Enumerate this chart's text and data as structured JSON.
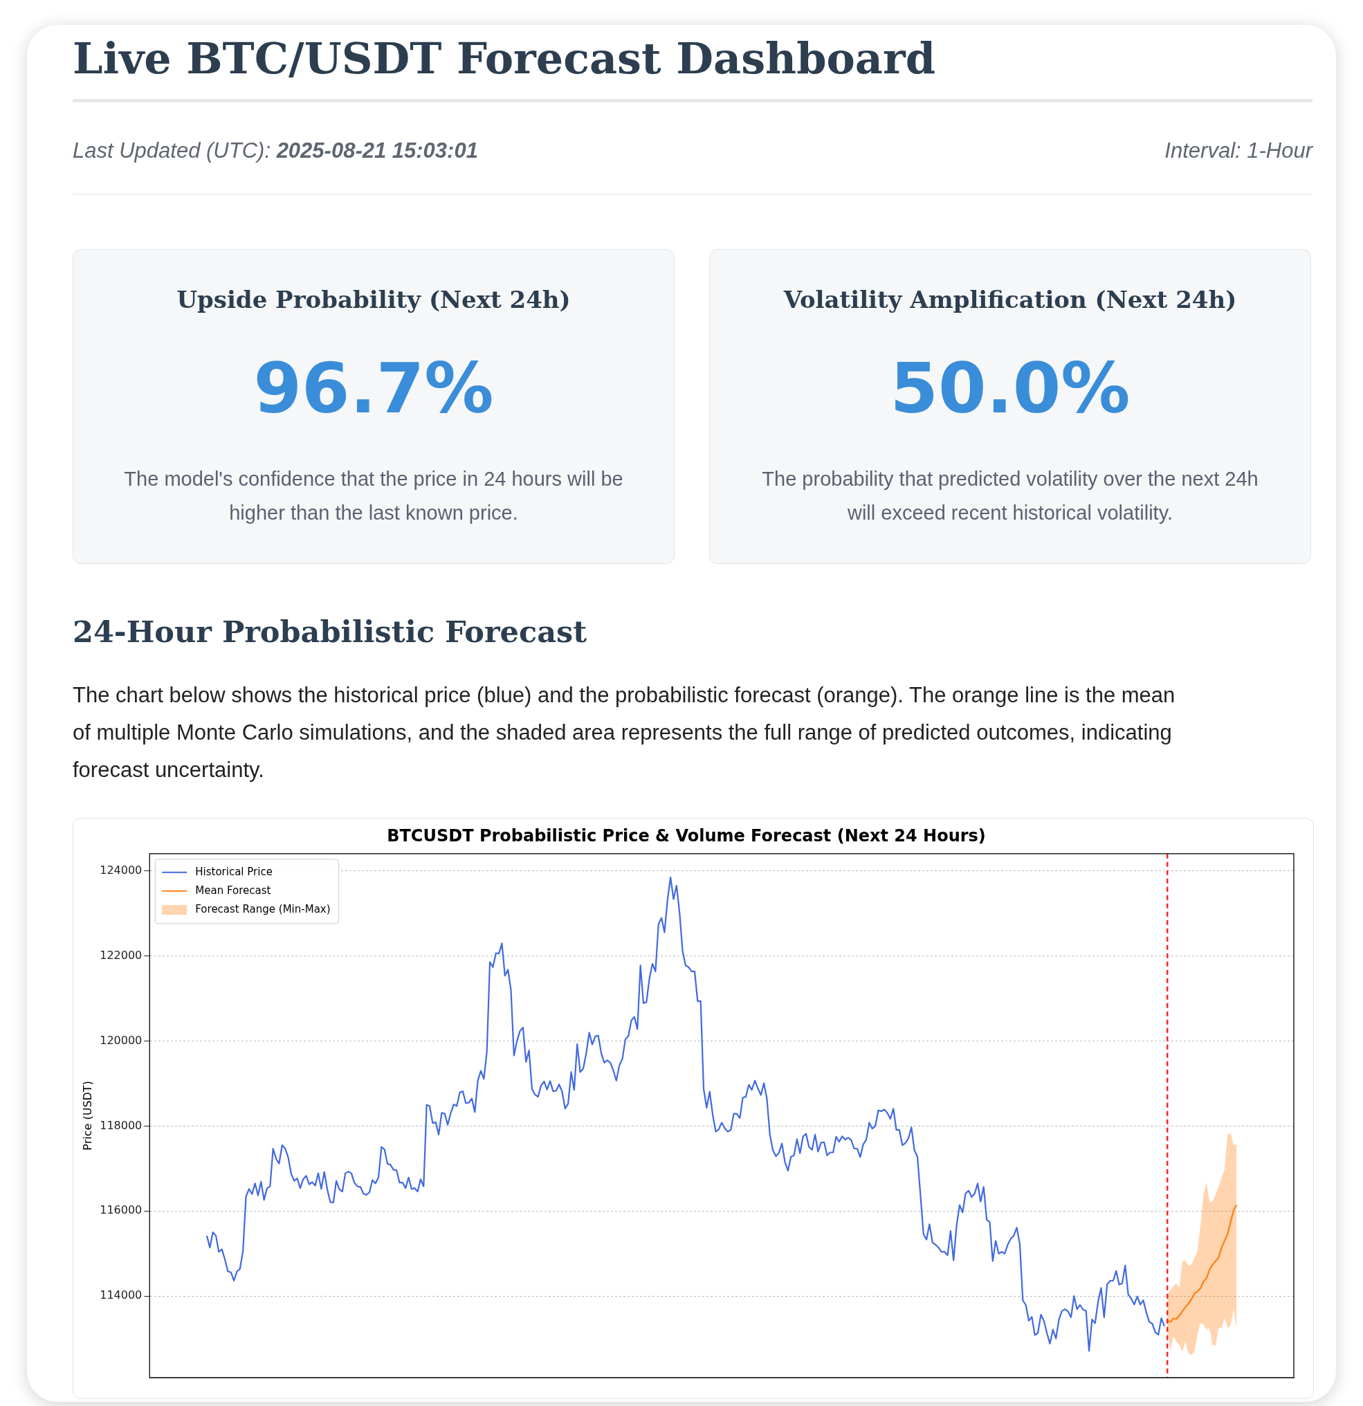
{
  "chart_data": [
    {
      "type": "other",
      "title": "Live BTC/USDT Forecast Dashboard",
      "annotations": [
        "Last Updated (UTC):",
        "2025-08-21 15:03:01",
        "Interval: 1-Hour"
      ]
    },
    {
      "type": "other",
      "title": "Upside Probability (Next 24h)",
      "annotations": [
        "96.7%",
        "The model's confidence that the price in 24 hours will be higher than the last known price."
      ]
    },
    {
      "type": "other",
      "title": "Volatility Amplification (Next 24h)",
      "annotations": [
        "50.0%",
        "The probability that predicted volatility over the next 24h will exceed recent historical volatility."
      ]
    },
    {
      "type": "other",
      "title": "24-Hour Probabilistic Forecast",
      "annotations": [
        "The chart below shows the historical price (blue) and the probabilistic forecast (orange). The orange line is the mean of multiple Monte Carlo simulations, and the shaded area represents the full range of predicted outcomes, indicating forecast uncertainty."
      ]
    },
    {
      "type": "line",
      "title": "BTCUSDT Probabilistic Price & Volume Forecast (Next 24 Hours)",
      "ylabel": "Price (USDT)",
      "ylim": [
        112080,
        124410
      ],
      "yticks": [
        114000,
        116000,
        118000,
        120000,
        122000,
        124000
      ],
      "tick_labels": "y",
      "grid": "y",
      "legend": "top left",
      "annotations": [
        "Forecast Range (Min-Max)"
      ],
      "ref_lines": [
        {
          "axis": "x",
          "color": "#ff2020",
          "line_style": "dashed"
        }
      ],
      "categories": [
        null,
        null,
        null,
        null,
        null,
        null,
        null,
        null,
        null,
        null,
        null,
        null,
        null,
        null,
        null,
        null,
        null,
        null,
        null,
        null,
        null,
        null,
        null,
        null,
        null,
        null,
        null,
        null,
        null,
        null,
        null,
        null,
        null,
        null,
        null,
        null,
        null,
        null,
        null,
        null,
        null,
        null,
        null,
        null,
        null,
        null,
        null,
        null,
        null,
        null,
        null,
        null,
        null,
        null,
        null,
        null,
        null,
        null,
        null,
        null,
        null,
        null,
        null,
        null,
        null,
        null,
        null,
        null,
        null,
        null,
        null,
        null,
        null,
        null,
        null,
        null,
        null,
        null,
        null,
        null,
        null,
        null,
        null,
        null,
        null,
        null,
        null,
        null,
        null,
        null,
        null,
        null,
        null,
        null,
        null,
        null,
        null,
        null,
        null,
        null,
        null,
        null,
        null,
        null,
        null,
        null,
        null,
        null,
        null,
        null,
        null,
        null,
        null,
        null,
        null,
        null,
        null,
        null,
        null,
        null,
        null,
        null,
        null,
        null,
        null,
        null,
        null,
        null,
        null,
        null,
        null,
        null,
        null,
        null,
        null,
        null,
        null,
        null,
        null,
        null,
        null,
        null,
        null,
        null,
        null,
        null,
        null,
        null,
        null,
        null,
        null,
        null,
        null,
        null,
        null,
        null,
        null,
        null,
        null,
        null,
        null,
        null,
        null,
        null,
        null,
        null,
        null,
        null,
        null,
        null,
        null,
        null,
        null,
        null,
        null,
        null,
        null,
        null,
        null,
        null,
        null,
        null,
        null,
        null,
        null,
        null,
        null,
        null,
        null,
        null,
        null,
        null,
        null,
        null,
        null,
        null,
        null,
        null,
        null,
        null,
        null,
        null,
        null,
        null,
        null,
        null,
        null,
        null,
        null,
        null,
        null,
        null,
        null,
        null,
        null,
        null,
        null,
        null,
        null,
        null,
        null,
        null,
        null,
        null,
        null,
        null,
        null,
        null,
        null,
        null,
        null,
        null,
        null,
        null,
        null,
        null,
        null,
        null,
        null,
        null,
        null,
        null,
        null,
        null,
        null,
        null,
        null,
        null,
        null,
        null,
        null,
        null,
        null,
        null,
        null,
        null,
        null,
        null,
        null,
        null,
        null,
        null,
        null,
        null,
        null,
        null,
        null,
        null,
        null,
        null,
        null,
        null,
        null,
        null,
        null,
        null,
        null,
        null,
        null,
        null,
        null,
        null,
        null,
        null,
        null,
        null,
        null,
        null,
        null,
        null,
        null,
        null,
        null,
        null,
        null,
        null,
        null,
        null,
        null,
        null,
        null,
        null,
        null,
        null,
        null,
        null,
        null,
        null,
        null,
        null,
        null,
        null,
        null,
        null,
        null,
        null,
        null,
        null,
        null,
        null,
        null,
        null,
        null,
        null,
        null,
        null,
        null,
        null,
        null,
        null,
        null,
        null,
        null,
        null,
        null,
        null,
        null,
        null,
        null,
        null,
        null,
        null,
        null
      ],
      "series": [
        {
          "name": "Historical Price",
          "color": "#4169e1",
          "values": [
            115420,
            115140,
            115500,
            115420,
            115040,
            115100,
            114860,
            114580,
            114560,
            114360,
            114580,
            114640,
            115060,
            116340,
            116520,
            116400,
            116650,
            116370,
            116690,
            116260,
            116540,
            116580,
            117470,
            117230,
            117120,
            117550,
            117470,
            117270,
            116880,
            116710,
            116770,
            116540,
            116750,
            116830,
            116630,
            116680,
            116600,
            116890,
            116520,
            116920,
            116510,
            116210,
            116200,
            116710,
            116510,
            116460,
            116890,
            116930,
            116890,
            116670,
            116580,
            116570,
            116410,
            116380,
            116440,
            116730,
            116650,
            116790,
            117510,
            117450,
            117110,
            117090,
            116970,
            116960,
            116670,
            116670,
            116540,
            116790,
            116520,
            116540,
            116460,
            116750,
            116580,
            118500,
            118470,
            118070,
            118090,
            117800,
            118310,
            118290,
            118030,
            118310,
            118510,
            118470,
            118790,
            118820,
            118540,
            118550,
            118650,
            118330,
            119070,
            119300,
            119110,
            119750,
            121860,
            121740,
            122070,
            122060,
            122300,
            121540,
            121680,
            121200,
            119660,
            120000,
            120240,
            120320,
            119510,
            119780,
            118870,
            118740,
            118690,
            118950,
            119050,
            118860,
            119060,
            118820,
            118830,
            118980,
            118810,
            118410,
            118530,
            119270,
            118850,
            119930,
            119270,
            119350,
            119710,
            120200,
            119920,
            120110,
            120130,
            119710,
            119490,
            119550,
            119490,
            119310,
            119070,
            119430,
            119580,
            120040,
            120120,
            120490,
            120570,
            120280,
            121780,
            120890,
            120920,
            121480,
            121820,
            121640,
            122750,
            122900,
            122560,
            123330,
            123850,
            123340,
            123660,
            123020,
            122120,
            121780,
            121740,
            121640,
            121640,
            120940,
            120940,
            118870,
            118430,
            118810,
            118270,
            117870,
            117920,
            118080,
            117950,
            117870,
            117910,
            118290,
            118290,
            118190,
            118670,
            118690,
            118970,
            118850,
            119070,
            118890,
            118730,
            119010,
            118650,
            117790,
            117430,
            117290,
            117370,
            117590,
            117150,
            116950,
            117280,
            117310,
            117690,
            117360,
            117750,
            117820,
            117510,
            117440,
            117800,
            117400,
            117610,
            117620,
            117310,
            117380,
            117380,
            117750,
            117630,
            117760,
            117680,
            117730,
            117670,
            117470,
            117470,
            117270,
            117570,
            117680,
            118080,
            117940,
            118000,
            118370,
            118350,
            118390,
            118310,
            118170,
            118410,
            117910,
            117910,
            117550,
            117600,
            117710,
            117970,
            117430,
            117280,
            116380,
            115460,
            115330,
            115690,
            115260,
            115210,
            115140,
            115040,
            115040,
            114960,
            115530,
            114840,
            115660,
            116140,
            115970,
            116420,
            116480,
            116330,
            116410,
            116650,
            116220,
            116570,
            115800,
            115740,
            114820,
            115300,
            115000,
            115040,
            115000,
            115210,
            115350,
            115420,
            115610,
            115220,
            113900,
            113790,
            113420,
            113510,
            113080,
            113130,
            113560,
            113420,
            113130,
            112880,
            113210,
            113000,
            113450,
            113650,
            113690,
            113640,
            113500,
            114000,
            113690,
            113790,
            113680,
            113650,
            112710,
            113450,
            113360,
            113870,
            114190,
            113500,
            114270,
            114360,
            114360,
            114590,
            114270,
            114300,
            114720,
            114040,
            113940,
            113800,
            113990,
            113800,
            113900,
            113620,
            113390,
            113350,
            113150,
            113090,
            113480,
            113290,
            null,
            null,
            null,
            null,
            null,
            null,
            null,
            null,
            null,
            null,
            null,
            null,
            null,
            null,
            null,
            null,
            null,
            null,
            null,
            null,
            null,
            null,
            null,
            null
          ]
        },
        {
          "name": "Mean Forecast",
          "color": "#ff7f0e",
          "values": [
            null,
            null,
            null,
            null,
            null,
            null,
            null,
            null,
            null,
            null,
            null,
            null,
            null,
            null,
            null,
            null,
            null,
            null,
            null,
            null,
            null,
            null,
            null,
            null,
            null,
            null,
            null,
            null,
            null,
            null,
            null,
            null,
            null,
            null,
            null,
            null,
            null,
            null,
            null,
            null,
            null,
            null,
            null,
            null,
            null,
            null,
            null,
            null,
            null,
            null,
            null,
            null,
            null,
            null,
            null,
            null,
            null,
            null,
            null,
            null,
            null,
            null,
            null,
            null,
            null,
            null,
            null,
            null,
            null,
            null,
            null,
            null,
            null,
            null,
            null,
            null,
            null,
            null,
            null,
            null,
            null,
            null,
            null,
            null,
            null,
            null,
            null,
            null,
            null,
            null,
            null,
            null,
            null,
            null,
            null,
            null,
            null,
            null,
            null,
            null,
            null,
            null,
            null,
            null,
            null,
            null,
            null,
            null,
            null,
            null,
            null,
            null,
            null,
            null,
            null,
            null,
            null,
            null,
            null,
            null,
            null,
            null,
            null,
            null,
            null,
            null,
            null,
            null,
            null,
            null,
            null,
            null,
            null,
            null,
            null,
            null,
            null,
            null,
            null,
            null,
            null,
            null,
            null,
            null,
            null,
            null,
            null,
            null,
            null,
            null,
            null,
            null,
            null,
            null,
            null,
            null,
            null,
            null,
            null,
            null,
            null,
            null,
            null,
            null,
            null,
            null,
            null,
            null,
            null,
            null,
            null,
            null,
            null,
            null,
            null,
            null,
            null,
            null,
            null,
            null,
            null,
            null,
            null,
            null,
            null,
            null,
            null,
            null,
            null,
            null,
            null,
            null,
            null,
            null,
            null,
            null,
            null,
            null,
            null,
            null,
            null,
            null,
            null,
            null,
            null,
            null,
            null,
            null,
            null,
            null,
            null,
            null,
            null,
            null,
            null,
            null,
            null,
            null,
            null,
            null,
            null,
            null,
            null,
            null,
            null,
            null,
            null,
            null,
            null,
            null,
            null,
            null,
            null,
            null,
            null,
            null,
            null,
            null,
            null,
            null,
            null,
            null,
            null,
            null,
            null,
            null,
            null,
            null,
            null,
            null,
            null,
            null,
            null,
            null,
            null,
            null,
            null,
            null,
            null,
            null,
            null,
            null,
            null,
            null,
            null,
            null,
            null,
            null,
            null,
            null,
            null,
            null,
            null,
            null,
            null,
            null,
            null,
            null,
            null,
            null,
            null,
            null,
            null,
            null,
            null,
            null,
            null,
            null,
            null,
            null,
            null,
            null,
            null,
            null,
            null,
            null,
            null,
            null,
            null,
            null,
            null,
            null,
            null,
            null,
            null,
            null,
            null,
            null,
            null,
            null,
            null,
            null,
            null,
            null,
            null,
            null,
            null,
            null,
            null,
            113420,
            113390,
            113470,
            113460,
            113540,
            113640,
            113740,
            113820,
            113920,
            114060,
            114110,
            114180,
            114340,
            114420,
            114620,
            114740,
            114820,
            114900,
            115140,
            115300,
            115460,
            115740,
            116020,
            116140
          ],
          "lower": [
            null,
            null,
            null,
            null,
            null,
            null,
            null,
            null,
            null,
            null,
            null,
            null,
            null,
            null,
            null,
            null,
            null,
            null,
            null,
            null,
            null,
            null,
            null,
            null,
            null,
            null,
            null,
            null,
            null,
            null,
            null,
            null,
            null,
            null,
            null,
            null,
            null,
            null,
            null,
            null,
            null,
            null,
            null,
            null,
            null,
            null,
            null,
            null,
            null,
            null,
            null,
            null,
            null,
            null,
            null,
            null,
            null,
            null,
            null,
            null,
            null,
            null,
            null,
            null,
            null,
            null,
            null,
            null,
            null,
            null,
            null,
            null,
            null,
            null,
            null,
            null,
            null,
            null,
            null,
            null,
            null,
            null,
            null,
            null,
            null,
            null,
            null,
            null,
            null,
            null,
            null,
            null,
            null,
            null,
            null,
            null,
            null,
            null,
            null,
            null,
            null,
            null,
            null,
            null,
            null,
            null,
            null,
            null,
            null,
            null,
            null,
            null,
            null,
            null,
            null,
            null,
            null,
            null,
            null,
            null,
            null,
            null,
            null,
            null,
            null,
            null,
            null,
            null,
            null,
            null,
            null,
            null,
            null,
            null,
            null,
            null,
            null,
            null,
            null,
            null,
            null,
            null,
            null,
            null,
            null,
            null,
            null,
            null,
            null,
            null,
            null,
            null,
            null,
            null,
            null,
            null,
            null,
            null,
            null,
            null,
            null,
            null,
            null,
            null,
            null,
            null,
            null,
            null,
            null,
            null,
            null,
            null,
            null,
            null,
            null,
            null,
            null,
            null,
            null,
            null,
            null,
            null,
            null,
            null,
            null,
            null,
            null,
            null,
            null,
            null,
            null,
            null,
            null,
            null,
            null,
            null,
            null,
            null,
            null,
            null,
            null,
            null,
            null,
            null,
            null,
            null,
            null,
            null,
            null,
            null,
            null,
            null,
            null,
            null,
            null,
            null,
            null,
            null,
            null,
            null,
            null,
            null,
            null,
            null,
            null,
            null,
            null,
            null,
            null,
            null,
            null,
            null,
            null,
            null,
            null,
            null,
            null,
            null,
            null,
            null,
            null,
            null,
            null,
            null,
            null,
            null,
            null,
            null,
            null,
            null,
            null,
            null,
            null,
            null,
            null,
            null,
            null,
            null,
            null,
            null,
            null,
            null,
            null,
            null,
            null,
            null,
            null,
            null,
            null,
            null,
            null,
            null,
            null,
            null,
            null,
            null,
            null,
            null,
            null,
            null,
            null,
            null,
            null,
            null,
            null,
            null,
            null,
            null,
            null,
            null,
            null,
            null,
            null,
            null,
            null,
            null,
            null,
            null,
            null,
            null,
            null,
            null,
            null,
            null,
            null,
            null,
            null,
            null,
            null,
            null,
            null,
            null,
            null,
            null,
            null,
            null,
            null,
            null,
            null,
            113290,
            112710,
            113050,
            112930,
            112850,
            112690,
            112930,
            112650,
            112610,
            112690,
            113090,
            113370,
            113330,
            113210,
            113250,
            112850,
            112830,
            113250,
            113250,
            113480,
            113250,
            113310,
            113690,
            113210
          ],
          "upper": [
            null,
            null,
            null,
            null,
            null,
            null,
            null,
            null,
            null,
            null,
            null,
            null,
            null,
            null,
            null,
            null,
            null,
            null,
            null,
            null,
            null,
            null,
            null,
            null,
            null,
            null,
            null,
            null,
            null,
            null,
            null,
            null,
            null,
            null,
            null,
            null,
            null,
            null,
            null,
            null,
            null,
            null,
            null,
            null,
            null,
            null,
            null,
            null,
            null,
            null,
            null,
            null,
            null,
            null,
            null,
            null,
            null,
            null,
            null,
            null,
            null,
            null,
            null,
            null,
            null,
            null,
            null,
            null,
            null,
            null,
            null,
            null,
            null,
            null,
            null,
            null,
            null,
            null,
            null,
            null,
            null,
            null,
            null,
            null,
            null,
            null,
            null,
            null,
            null,
            null,
            null,
            null,
            null,
            null,
            null,
            null,
            null,
            null,
            null,
            null,
            null,
            null,
            null,
            null,
            null,
            null,
            null,
            null,
            null,
            null,
            null,
            null,
            null,
            null,
            null,
            null,
            null,
            null,
            null,
            null,
            null,
            null,
            null,
            null,
            null,
            null,
            null,
            null,
            null,
            null,
            null,
            null,
            null,
            null,
            null,
            null,
            null,
            null,
            null,
            null,
            null,
            null,
            null,
            null,
            null,
            null,
            null,
            null,
            null,
            null,
            null,
            null,
            null,
            null,
            null,
            null,
            null,
            null,
            null,
            null,
            null,
            null,
            null,
            null,
            null,
            null,
            null,
            null,
            null,
            null,
            null,
            null,
            null,
            null,
            null,
            null,
            null,
            null,
            null,
            null,
            null,
            null,
            null,
            null,
            null,
            null,
            null,
            null,
            null,
            null,
            null,
            null,
            null,
            null,
            null,
            null,
            null,
            null,
            null,
            null,
            null,
            null,
            null,
            null,
            null,
            null,
            null,
            null,
            null,
            null,
            null,
            null,
            null,
            null,
            null,
            null,
            null,
            null,
            null,
            null,
            null,
            null,
            null,
            null,
            null,
            null,
            null,
            null,
            null,
            null,
            null,
            null,
            null,
            null,
            null,
            null,
            null,
            null,
            null,
            null,
            null,
            null,
            null,
            null,
            null,
            null,
            null,
            null,
            null,
            null,
            null,
            null,
            null,
            null,
            null,
            null,
            null,
            null,
            null,
            null,
            null,
            null,
            null,
            null,
            null,
            null,
            null,
            null,
            null,
            null,
            null,
            null,
            null,
            null,
            null,
            null,
            null,
            null,
            null,
            null,
            null,
            null,
            null,
            null,
            null,
            null,
            null,
            null,
            null,
            null,
            null,
            null,
            null,
            null,
            null,
            null,
            null,
            null,
            null,
            null,
            null,
            null,
            null,
            null,
            null,
            null,
            null,
            null,
            null,
            null,
            null,
            null,
            null,
            null,
            null,
            null,
            null,
            null,
            null,
            114030,
            114150,
            114230,
            114300,
            114190,
            114820,
            114840,
            114710,
            114730,
            114900,
            115060,
            115660,
            116380,
            116680,
            116220,
            116220,
            116380,
            116580,
            116780,
            116990,
            117790,
            117840,
            117550,
            117570
          ]
        }
      ]
    }
  ]
}
